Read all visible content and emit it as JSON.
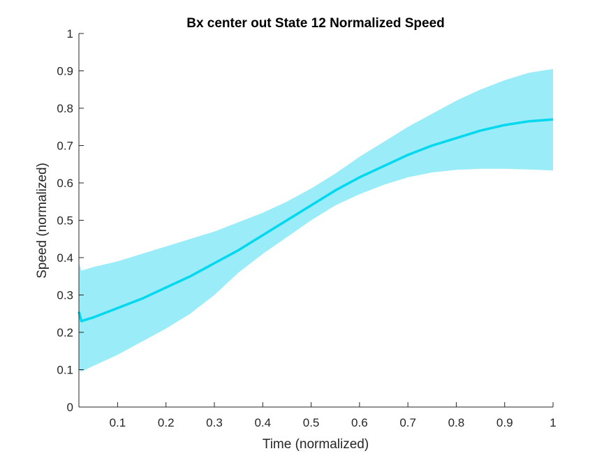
{
  "chart_data": {
    "type": "line",
    "title": "Bx  center out State 12 Normalized Speed",
    "xlabel": "Time (normalized)",
    "ylabel": "Speed (normalized)",
    "xlim": [
      0.02,
      1.0
    ],
    "ylim": [
      0,
      1
    ],
    "xticks": [
      "0.1",
      "0.2",
      "0.3",
      "0.4",
      "0.5",
      "0.6",
      "0.7",
      "0.8",
      "0.9",
      "1"
    ],
    "yticks": [
      "0",
      "0.1",
      "0.2",
      "0.3",
      "0.4",
      "0.5",
      "0.6",
      "0.7",
      "0.8",
      "0.9",
      "1"
    ],
    "grid": false,
    "colors": {
      "line": "#00d8f0",
      "band": "#99ecf8",
      "axis": "#262626"
    },
    "series": [
      {
        "x": [
          0.02,
          0.025,
          0.05,
          0.1,
          0.15,
          0.2,
          0.25,
          0.3,
          0.35,
          0.4,
          0.45,
          0.5,
          0.55,
          0.6,
          0.65,
          0.7,
          0.75,
          0.8,
          0.85,
          0.9,
          0.95,
          1.0
        ],
        "mean": [
          0.255,
          0.23,
          0.24,
          0.265,
          0.29,
          0.32,
          0.35,
          0.385,
          0.42,
          0.46,
          0.5,
          0.54,
          0.58,
          0.615,
          0.645,
          0.675,
          0.7,
          0.72,
          0.74,
          0.755,
          0.765,
          0.77
        ],
        "upper": [
          0.385,
          0.365,
          0.375,
          0.39,
          0.41,
          0.43,
          0.45,
          0.47,
          0.495,
          0.52,
          0.55,
          0.585,
          0.625,
          0.67,
          0.71,
          0.75,
          0.785,
          0.82,
          0.85,
          0.875,
          0.895,
          0.905
        ],
        "lower": [
          0.1,
          0.095,
          0.11,
          0.14,
          0.175,
          0.21,
          0.25,
          0.3,
          0.36,
          0.41,
          0.455,
          0.5,
          0.54,
          0.57,
          0.595,
          0.615,
          0.628,
          0.635,
          0.638,
          0.638,
          0.636,
          0.633
        ]
      }
    ]
  }
}
